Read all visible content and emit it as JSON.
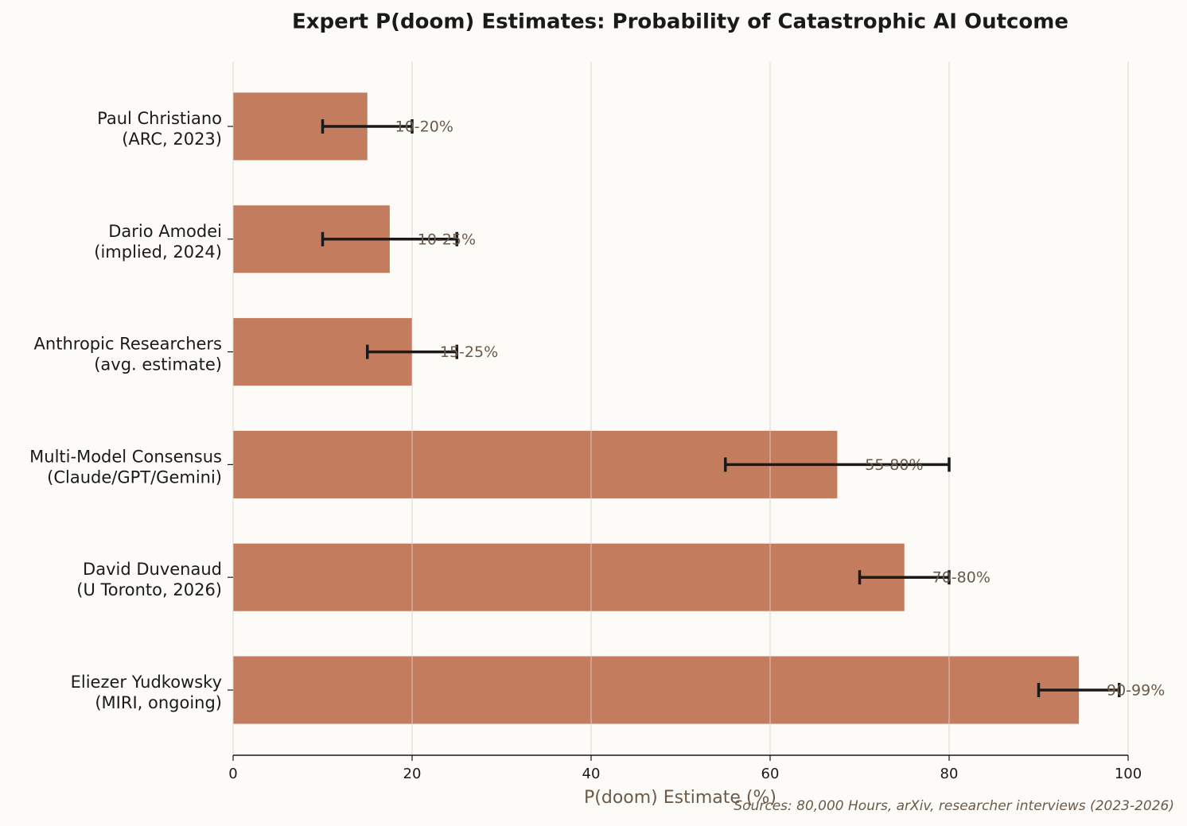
{
  "chart_data": {
    "type": "barh",
    "title": "Expert P(doom) Estimates: Probability of Catastrophic AI Outcome",
    "xlabel": "P(doom) Estimate (%)",
    "source": "Sources: 80,000 Hours, arXiv, researcher interviews (2023-2026)",
    "categories": [
      [
        "Paul Christiano",
        "(ARC, 2023)"
      ],
      [
        "Dario Amodei",
        "(implied, 2024)"
      ],
      [
        "Anthropic Researchers",
        "(avg. estimate)"
      ],
      [
        "Multi-Model Consensus",
        "(Claude/GPT/Gemini)"
      ],
      [
        "David Duvenaud",
        "(U Toronto, 2026)"
      ],
      [
        "Eliezer Yudkowsky",
        "(MIRI, ongoing)"
      ]
    ],
    "values": [
      15,
      17.5,
      20,
      67.5,
      75,
      94.5
    ],
    "lows": [
      10,
      10,
      15,
      55,
      70,
      90
    ],
    "highs": [
      20,
      25,
      25,
      80,
      80,
      99
    ],
    "range_labels": [
      "10-20%",
      "10-25%",
      "15-25%",
      "55-80%",
      "70-80%",
      "90-99%"
    ],
    "color": "#c47c5f",
    "xlim": [
      0,
      100
    ],
    "xticks": [
      0,
      20,
      40,
      60,
      80,
      100
    ],
    "grid": true
  }
}
